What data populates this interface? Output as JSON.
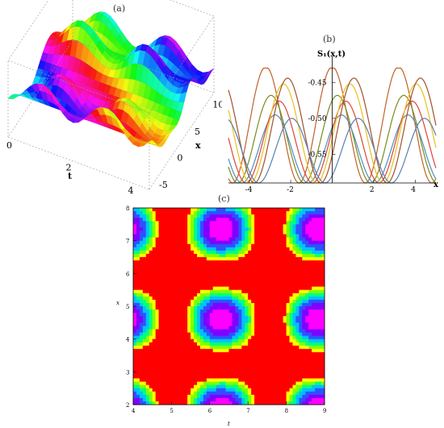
{
  "panels": {
    "a_label": "(a)",
    "b_label": "(b)",
    "c_label": "(c)"
  },
  "chart_data": [
    {
      "type": "surface",
      "panel": "(a)",
      "xlabel": "t",
      "ylabel": "x",
      "t_ticks": [
        "0",
        "2",
        "4"
      ],
      "x_ticks": [
        "-5",
        "0",
        "5",
        "10"
      ],
      "colormap": "hue",
      "grid": true
    },
    {
      "type": "line",
      "panel": "(b)",
      "title": "S₁(x,t)",
      "xlabel": "x",
      "xlim": [
        -5,
        5
      ],
      "ylim": [
        -0.59,
        -0.425
      ],
      "x_ticks": [
        "-4",
        "-2",
        "2",
        "4"
      ],
      "y_ticks": [
        "-0.45",
        "-0.50",
        "-0.55"
      ],
      "series": [
        {
          "color": "#c0622a",
          "amplitude": 0.07,
          "min": -0.59,
          "phase": 0.0
        },
        {
          "color": "#7a8c1f",
          "amplitude": 0.045,
          "min": -0.59,
          "phase": 0.25
        },
        {
          "color": "#4d8fbf",
          "amplitude": 0.028,
          "min": -0.59,
          "phase": 0.45
        },
        {
          "color": "#d9473a",
          "amplitude": 0.04,
          "min": -0.59,
          "phase": 0.65
        },
        {
          "color": "#e8c020",
          "amplitude": 0.055,
          "min": -0.59,
          "phase": 0.85
        },
        {
          "color": "#a0522d",
          "amplitude": 0.06,
          "min": -0.59,
          "phase": 1.05
        },
        {
          "color": "#5b7fb0",
          "amplitude": 0.025,
          "min": -0.59,
          "phase": 1.25
        }
      ]
    },
    {
      "type": "contour",
      "panel": "(c)",
      "xlabel": "t",
      "ylabel": "x",
      "xlim": [
        4,
        9
      ],
      "ylim": [
        2,
        8
      ],
      "x_ticks": [
        "4",
        "5",
        "6",
        "7",
        "8",
        "9"
      ],
      "y_ticks": [
        "2",
        "3",
        "4",
        "5",
        "6",
        "7",
        "8"
      ],
      "levels_colors": [
        "#ff0000",
        "#ffff00",
        "#80ff00",
        "#00ff80",
        "#00c0ff",
        "#3050ff",
        "#8000ff",
        "#ff00ff",
        "#ff0000"
      ]
    }
  ]
}
